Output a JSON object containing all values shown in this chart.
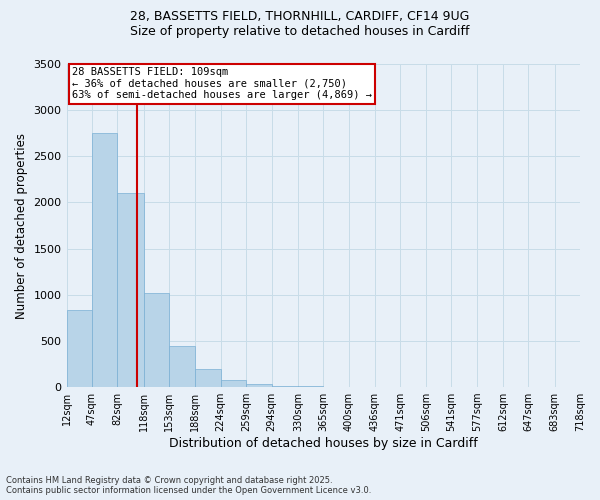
{
  "title_line1": "28, BASSETTS FIELD, THORNHILL, CARDIFF, CF14 9UG",
  "title_line2": "Size of property relative to detached houses in Cardiff",
  "xlabel": "Distribution of detached houses by size in Cardiff",
  "ylabel": "Number of detached properties",
  "property_label": "28 BASSETTS FIELD: 109sqm",
  "annotation_line1": "← 36% of detached houses are smaller (2,750)",
  "annotation_line2": "63% of semi-detached houses are larger (4,869) →",
  "footer_line1": "Contains HM Land Registry data © Crown copyright and database right 2025.",
  "footer_line2": "Contains public sector information licensed under the Open Government Licence v3.0.",
  "bin_edges": [
    12,
    47,
    82,
    118,
    153,
    188,
    224,
    259,
    294,
    330,
    365,
    400,
    436,
    471,
    506,
    541,
    577,
    612,
    647,
    683,
    718
  ],
  "bin_counts": [
    830,
    2750,
    2100,
    1020,
    450,
    200,
    80,
    30,
    15,
    8,
    5,
    4,
    3,
    2,
    1,
    1,
    1,
    0,
    0,
    0
  ],
  "bar_color": "#b8d4e8",
  "bar_edge_color": "#7aafd4",
  "vline_color": "#cc0000",
  "vline_x": 109,
  "annotation_box_color": "#cc0000",
  "ylim": [
    0,
    3500
  ],
  "yticks": [
    0,
    500,
    1000,
    1500,
    2000,
    2500,
    3000,
    3500
  ],
  "grid_color": "#c8dce8",
  "bg_color": "#e8f0f8"
}
